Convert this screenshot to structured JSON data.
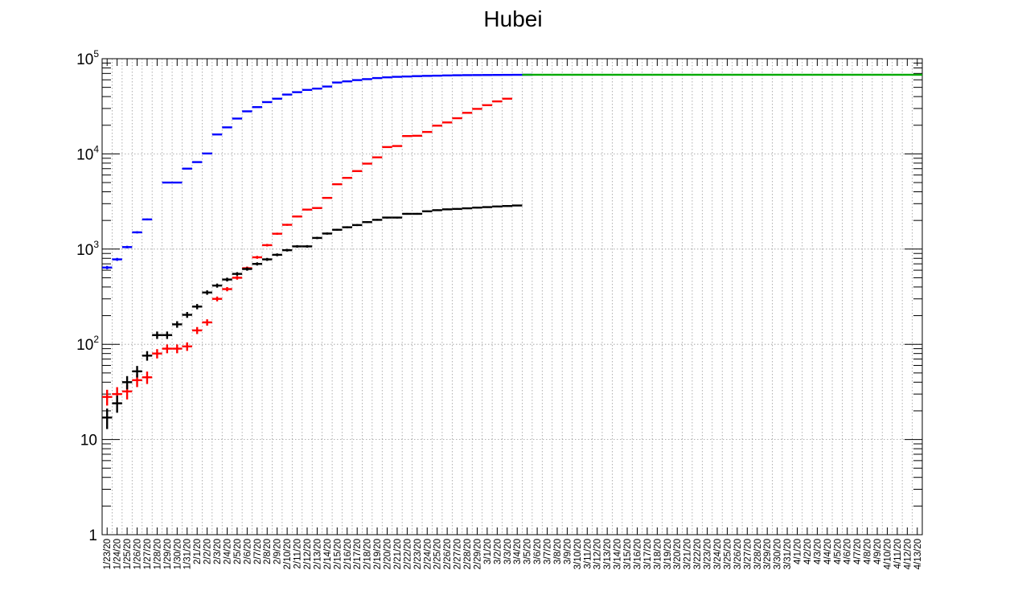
{
  "chart_data": {
    "type": "scatter",
    "title": "Hubei",
    "xlabel": "",
    "ylabel": "",
    "y_scale": "log",
    "ylim": [
      1,
      100000
    ],
    "y_tick_labels": [
      "1",
      "10",
      "10",
      "10",
      "10",
      "10"
    ],
    "y_tick_exponents": [
      "",
      "",
      "2",
      "3",
      "4",
      "5"
    ],
    "grid": true,
    "x": [
      "1/23/20",
      "1/24/20",
      "1/25/20",
      "1/26/20",
      "1/27/20",
      "1/28/20",
      "1/29/20",
      "1/30/20",
      "1/31/20",
      "2/1/20",
      "2/2/20",
      "2/3/20",
      "2/4/20",
      "2/5/20",
      "2/6/20",
      "2/7/20",
      "2/8/20",
      "2/9/20",
      "2/10/20",
      "2/11/20",
      "2/12/20",
      "2/13/20",
      "2/14/20",
      "2/15/20",
      "2/16/20",
      "2/17/20",
      "2/18/20",
      "2/19/20",
      "2/20/20",
      "2/21/20",
      "2/22/20",
      "2/23/20",
      "2/24/20",
      "2/25/20",
      "2/26/20",
      "2/27/20",
      "2/28/20",
      "2/29/20",
      "3/1/20",
      "3/2/20",
      "3/3/20",
      "3/4/20",
      "3/5/20",
      "3/6/20",
      "3/7/20",
      "3/8/20",
      "3/9/20",
      "3/10/20",
      "3/11/20",
      "3/12/20",
      "3/13/20",
      "3/14/20",
      "3/15/20",
      "3/16/20",
      "3/17/20",
      "3/18/20",
      "3/19/20",
      "3/20/20",
      "3/21/20",
      "3/22/20",
      "3/23/20",
      "3/24/20",
      "3/25/20",
      "3/26/20",
      "3/27/20",
      "3/28/20",
      "3/29/20",
      "3/30/20",
      "3/31/20",
      "4/1/20",
      "4/2/20",
      "4/3/20",
      "4/4/20",
      "4/5/20",
      "4/6/20",
      "4/7/20",
      "4/8/20",
      "4/9/20",
      "4/10/20",
      "4/11/20",
      "4/12/20",
      "4/13/20"
    ],
    "series": [
      {
        "color": "#0000ff",
        "values": [
          640,
          780,
          1050,
          1500,
          2050,
          null,
          5000,
          5000,
          7000,
          8200,
          10100,
          16000,
          19000,
          23500,
          28000,
          31000,
          35000,
          38000,
          42000,
          44500,
          47000,
          48500,
          51000,
          56200,
          57800,
          59600,
          61000,
          62600,
          63700,
          64500,
          65000,
          65600,
          66000,
          66300,
          66700,
          67000,
          67200,
          67300,
          67400,
          67500,
          67600,
          67700,
          67800
        ]
      },
      {
        "color": "#ff0000",
        "values": [
          28,
          30,
          32,
          42,
          45,
          80,
          90,
          90,
          95,
          140,
          170,
          300,
          380,
          500,
          630,
          820,
          1100,
          1450,
          1800,
          2200,
          2600,
          2700,
          3450,
          4800,
          5600,
          6600,
          7900,
          9200,
          11800,
          12100,
          15400,
          15500,
          17000,
          19800,
          21400,
          23700,
          27000,
          29700,
          32500,
          35600,
          38000
        ]
      },
      {
        "color": "#000000",
        "values": [
          17,
          24,
          40,
          52,
          76,
          125,
          125,
          162,
          204,
          249,
          350,
          414,
          479,
          549,
          618,
          699,
          780,
          871,
          974,
          1068,
          1068,
          1310,
          1457,
          1596,
          1696,
          1789,
          1921,
          2029,
          2144,
          2144,
          2346,
          2346,
          2495,
          2563,
          2615,
          2641,
          2682,
          2727,
          2761,
          2803,
          2835,
          2871
        ]
      },
      {
        "color": "#00aa00",
        "values": [
          null,
          null,
          null,
          null,
          null,
          null,
          null,
          null,
          null,
          null,
          null,
          null,
          null,
          null,
          null,
          null,
          null,
          null,
          null,
          null,
          null,
          null,
          null,
          null,
          null,
          null,
          null,
          null,
          null,
          null,
          null,
          null,
          null,
          null,
          null,
          null,
          null,
          null,
          null,
          null,
          null,
          null,
          67800,
          67800,
          67800,
          67800,
          67800,
          67800,
          67800,
          67800,
          67800,
          67800,
          67800,
          67800,
          67800,
          67800,
          67800,
          67800,
          67800,
          67800,
          67800,
          67800,
          67800,
          67800,
          67800,
          67800,
          67800,
          67800,
          67800,
          67800,
          67800,
          67800,
          67800,
          67800,
          67800,
          67800,
          67800,
          67800,
          67800,
          67800,
          67800,
          67800
        ]
      }
    ]
  }
}
